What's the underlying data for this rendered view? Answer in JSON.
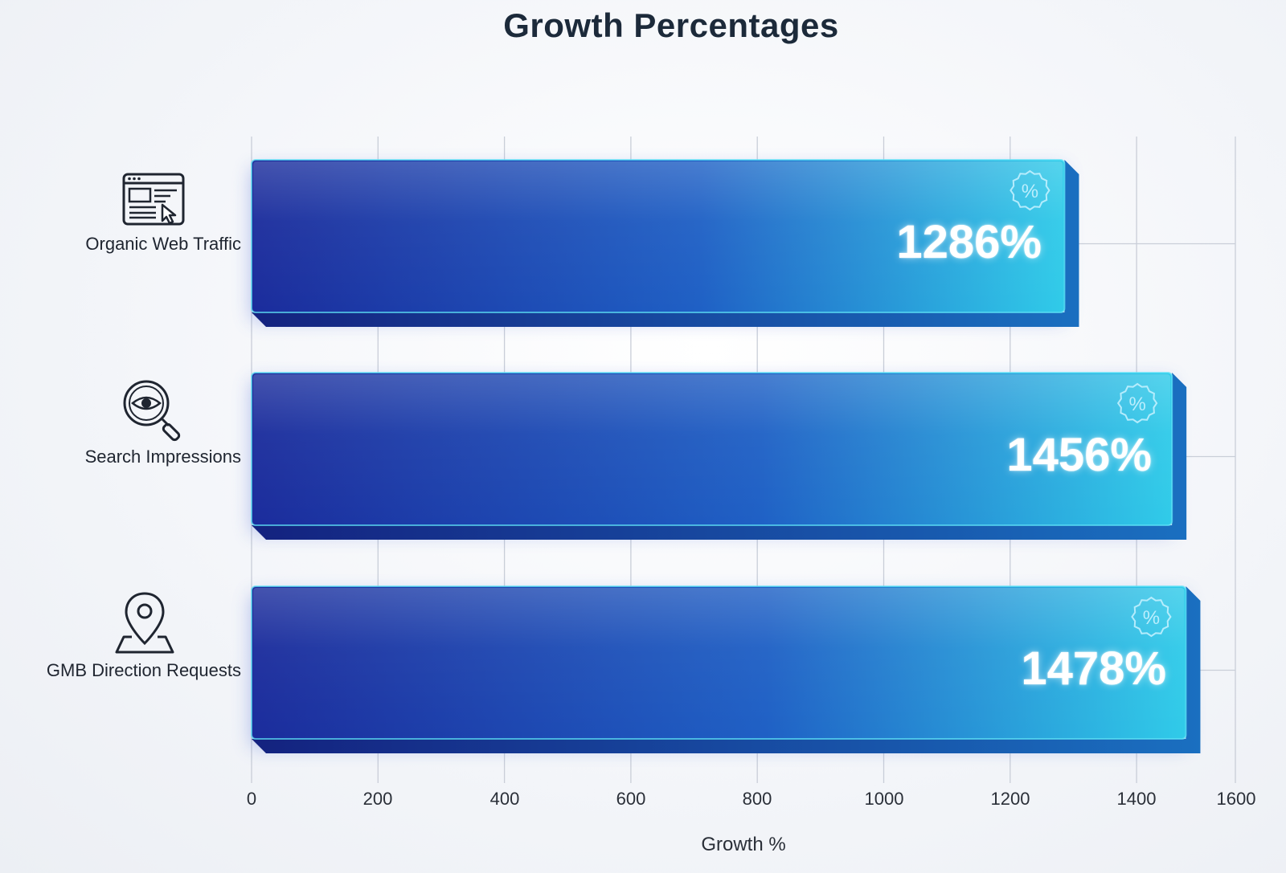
{
  "chart_data": {
    "type": "bar",
    "orientation": "horizontal",
    "title": "Growth Percentages",
    "xlabel": "Growth %",
    "ylabel": "",
    "categories": [
      "Organic Web Traffic",
      "Search Impressions",
      "GMB Direction Requests"
    ],
    "values": [
      1286,
      1456,
      1478
    ],
    "value_labels": [
      "1286%",
      "1456%",
      "1478%"
    ],
    "xlim": [
      0,
      1600
    ],
    "x_ticks": [
      "0",
      "200",
      "400",
      "600",
      "800",
      "1000",
      "1200",
      "1400",
      "1600"
    ],
    "grid": true,
    "legend": "none",
    "category_icons": [
      "browser-window-icon",
      "eye-magnifier-icon",
      "map-pin-icon"
    ],
    "bar_badge_icon": "percent-badge-icon",
    "colors": {
      "bar_start": "#1a2a9a",
      "bar_mid": "#1f5fc4",
      "bar_end": "#2ec8e8",
      "bar_shadow": "#13237f",
      "grid": "#c9ced8",
      "title": "#1c2a3a"
    }
  }
}
